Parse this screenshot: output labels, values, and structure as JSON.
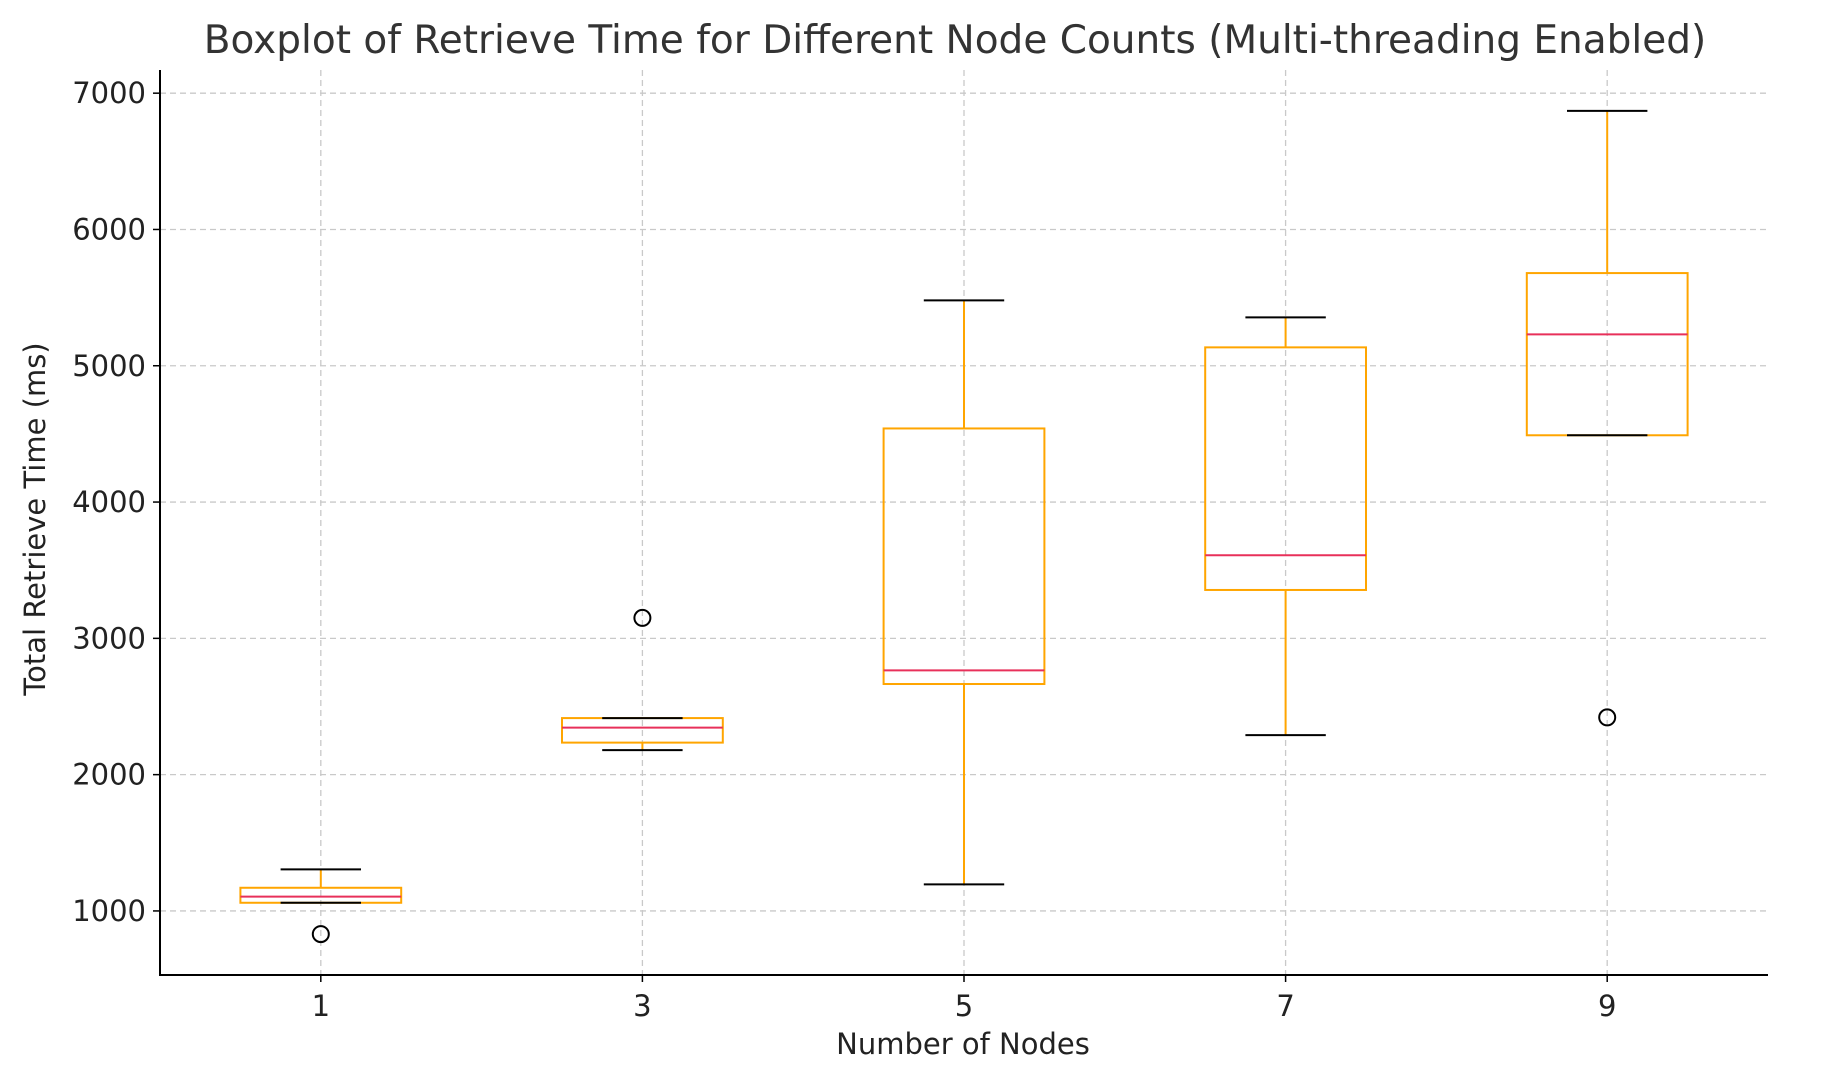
{
  "chart_data": {
    "type": "boxplot",
    "title": "Boxplot of Retrieve Time for Different Node Counts (Multi-threading Enabled)",
    "xlabel": "Number of Nodes",
    "ylabel": "Total Retrieve Time (ms)",
    "categories": [
      "1",
      "3",
      "5",
      "7",
      "9"
    ],
    "ylim": [
      530,
      7170
    ],
    "yticks": [
      1000,
      2000,
      3000,
      4000,
      5000,
      6000,
      7000
    ],
    "grid": true,
    "colors": {
      "box": "#ffa500",
      "median": "#e8305a",
      "whisker": "#ffa500",
      "cap": "#000000",
      "outlier": "#000000",
      "grid": "#c9c9c9"
    },
    "boxes": [
      {
        "category": "1",
        "whisker_low": 1060,
        "q1": 1060,
        "median": 1105,
        "q3": 1170,
        "whisker_high": 1305,
        "outliers": [
          830
        ]
      },
      {
        "category": "3",
        "whisker_low": 2180,
        "q1": 2235,
        "median": 2345,
        "q3": 2415,
        "whisker_high": 2415,
        "outliers": [
          3150
        ]
      },
      {
        "category": "5",
        "whisker_low": 1195,
        "q1": 2665,
        "median": 2765,
        "q3": 4540,
        "whisker_high": 5480,
        "outliers": []
      },
      {
        "category": "7",
        "whisker_low": 2290,
        "q1": 3355,
        "median": 3610,
        "q3": 5135,
        "whisker_high": 5355,
        "outliers": []
      },
      {
        "category": "9",
        "whisker_low": 4490,
        "q1": 4490,
        "median": 5230,
        "q3": 5680,
        "whisker_high": 6870,
        "outliers": [
          2420
        ]
      }
    ]
  }
}
